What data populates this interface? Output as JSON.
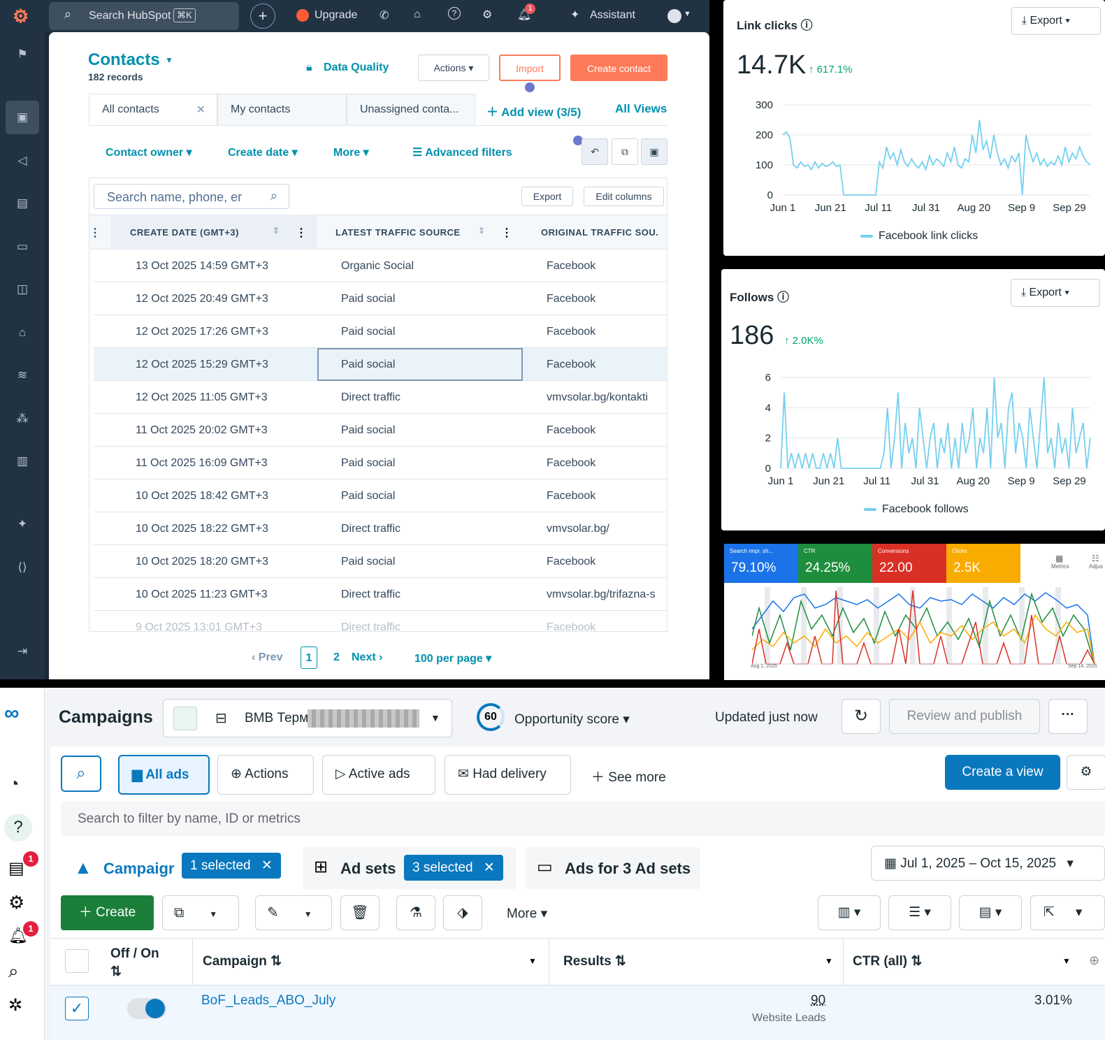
{
  "hubspot": {
    "search_placeholder": "Search HubSpot",
    "kbd": "⌘K",
    "upgrade": "Upgrade",
    "assistant": "Assistant",
    "notif_count": "1",
    "title": "Contacts",
    "records": "182 records",
    "data_quality": "Data Quality",
    "actions": "Actions",
    "import": "Import",
    "create_contact": "Create contact",
    "tabs": [
      "All contacts",
      "My contacts",
      "Unassigned conta..."
    ],
    "add_view": "Add view (3/5)",
    "all_views": "All Views",
    "filters": [
      "Contact owner",
      "Create date",
      "More"
    ],
    "advanced_filters": "Advanced filters",
    "table_search_placeholder": "Search name, phone, er",
    "export": "Export",
    "edit_columns": "Edit columns",
    "columns": [
      "CREATE DATE (GMT+3)",
      "LATEST TRAFFIC SOURCE",
      "ORIGINAL TRAFFIC SOU."
    ],
    "rows": [
      [
        "13 Oct 2025 14:59 GMT+3",
        "Organic Social",
        "Facebook"
      ],
      [
        "12 Oct 2025 20:49 GMT+3",
        "Paid social",
        "Facebook"
      ],
      [
        "12 Oct 2025 17:26 GMT+3",
        "Paid social",
        "Facebook"
      ],
      [
        "12 Oct 2025 15:29 GMT+3",
        "Paid social",
        "Facebook"
      ],
      [
        "12 Oct 2025 11:05 GMT+3",
        "Direct traffic",
        "vmvsolar.bg/kontakti"
      ],
      [
        "11 Oct 2025 20:02 GMT+3",
        "Paid social",
        "Facebook"
      ],
      [
        "11 Oct 2025 16:09 GMT+3",
        "Paid social",
        "Facebook"
      ],
      [
        "10 Oct 2025 18:42 GMT+3",
        "Paid social",
        "Facebook"
      ],
      [
        "10 Oct 2025 18:22 GMT+3",
        "Direct traffic",
        "vmvsolar.bg/"
      ],
      [
        "10 Oct 2025 18:20 GMT+3",
        "Paid social",
        "Facebook"
      ],
      [
        "10 Oct 2025 11:23 GMT+3",
        "Direct traffic",
        "vmvsolar.bg/trifazna-s"
      ],
      [
        "9 Oct 2025 13:01 GMT+3",
        "Direct traffic",
        "Facebook"
      ]
    ],
    "pager": {
      "prev": "Prev",
      "page1": "1",
      "page2": "2",
      "next": "Next",
      "per_page": "100 per page"
    }
  },
  "link_clicks": {
    "title": "Link clicks",
    "export": "Export",
    "value": "14.7K",
    "change": "617.1%",
    "legend": "Facebook link clicks"
  },
  "follows": {
    "title": "Follows",
    "export": "Export",
    "value": "186",
    "change": "2.0K%",
    "legend": "Facebook follows"
  },
  "ads_metrics": {
    "tiles": [
      {
        "label": "Search impr. sh...",
        "value": "79.10%",
        "color": "#1a73e8"
      },
      {
        "label": "CTR",
        "value": "24.25%",
        "color": "#1e8e3e"
      },
      {
        "label": "Conversions",
        "value": "22.00",
        "color": "#d93025"
      },
      {
        "label": "Clicks",
        "value": "2.5K",
        "color": "#f9ab00"
      }
    ],
    "metrics_label": "Metrics",
    "adjust_label": "Adjus",
    "x_start": "Aug 1, 2025",
    "x_end": "Sep 14, 2025"
  },
  "meta": {
    "title": "Campaigns",
    "account": "BMB Терм",
    "opp_score": "60",
    "opp_label": "Opportunity score",
    "updated": "Updated just now",
    "review": "Review and publish",
    "more_dots": "···",
    "filters": [
      "All ads",
      "Actions",
      "Active ads",
      "Had delivery"
    ],
    "see_more": "See more",
    "create_view": "Create a view",
    "search_placeholder": "Search to filter by name, ID or metrics",
    "tab_campaign": "Campaigr",
    "campaign_selected": "1 selected",
    "tab_adsets": "Ad sets",
    "adsets_selected": "3 selected",
    "tab_ads": "Ads for 3 Ad sets",
    "date_range": "Jul 1, 2025 – Oct 15, 2025",
    "create": "Create",
    "more": "More",
    "col_offon": "Off / On",
    "col_campaign": "Campaign",
    "col_results": "Results",
    "col_ctr": "CTR (all)",
    "row": {
      "name": "BoF_Leads_ABO_July",
      "results": "90",
      "results_label": "Website Leads",
      "ctr": "3.01%"
    },
    "notif_a": "1",
    "notif_b": "1"
  },
  "chart_data": [
    {
      "type": "line",
      "title": "Link clicks",
      "x_ticks": [
        "Jun 1",
        "Jun 21",
        "Jul 11",
        "Jul 31",
        "Aug 20",
        "Sep 9",
        "Sep 29"
      ],
      "ylim": [
        0,
        300
      ],
      "y_ticks": [
        0,
        100,
        200,
        300
      ],
      "series": [
        {
          "name": "Facebook link clicks",
          "values": [
            200,
            210,
            190,
            100,
            90,
            110,
            95,
            100,
            85,
            110,
            90,
            105,
            95,
            100,
            110,
            95,
            100,
            0,
            0,
            0,
            0,
            0,
            0,
            0,
            0,
            0,
            0,
            110,
            90,
            160,
            120,
            140,
            100,
            150,
            110,
            95,
            120,
            100,
            90,
            110,
            85,
            130,
            100,
            120,
            110,
            95,
            140,
            110,
            160,
            100,
            90,
            120,
            110,
            200,
            140,
            250,
            150,
            180,
            120,
            200,
            140,
            100,
            120,
            90,
            130,
            110,
            140,
            0,
            200,
            150,
            110,
            140,
            100,
            120,
            95,
            110,
            100,
            130,
            100,
            160,
            110,
            140,
            120,
            160,
            130,
            110,
            100
          ]
        }
      ]
    },
    {
      "type": "line",
      "title": "Follows",
      "x_ticks": [
        "Jun 1",
        "Jun 21",
        "Jul 11",
        "Jul 31",
        "Aug 20",
        "Sep 9",
        "Sep 29"
      ],
      "ylim": [
        0,
        6
      ],
      "y_ticks": [
        0,
        2,
        4,
        6
      ],
      "series": [
        {
          "name": "Facebook follows",
          "values": [
            0,
            5,
            0,
            1,
            0,
            1,
            0,
            1,
            0,
            1,
            0,
            0,
            1,
            0,
            1,
            0,
            2,
            0,
            0,
            0,
            0,
            0,
            0,
            0,
            0,
            0,
            0,
            0,
            0,
            1,
            4,
            0,
            2,
            5,
            0,
            3,
            1,
            2,
            0,
            4,
            2,
            0,
            2,
            3,
            0,
            2,
            1,
            3,
            0,
            2,
            0,
            3,
            1,
            2,
            4,
            0,
            2,
            1,
            4,
            0,
            6,
            2,
            3,
            0,
            4,
            5,
            1,
            3,
            2,
            0,
            4,
            2,
            0,
            3,
            6,
            1,
            2,
            0,
            3,
            1,
            2,
            0,
            4,
            1,
            2,
            3,
            0,
            2
          ]
        }
      ]
    }
  ]
}
